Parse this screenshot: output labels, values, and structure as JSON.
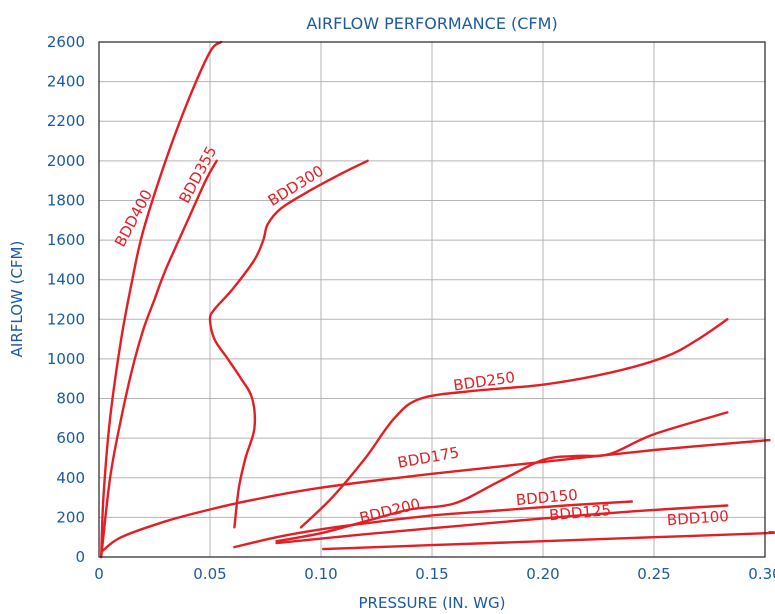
{
  "chart_data": {
    "type": "line",
    "title": "AIRFLOW PERFORMANCE (CFM)",
    "xlabel": "PRESSURE (IN. WG)",
    "ylabel": "AIRFLOW (CFM)",
    "xlim": [
      0,
      0.3
    ],
    "ylim": [
      0,
      2600
    ],
    "x_ticks": [
      "0",
      "0.05",
      "0.10",
      "0.15",
      "0.20",
      "0.25",
      "0.30"
    ],
    "y_ticks": [
      "0",
      "200",
      "400",
      "600",
      "800",
      "1000",
      "1200",
      "1400",
      "1600",
      "1800",
      "2000",
      "2200",
      "2400",
      "2600"
    ],
    "grid": true,
    "colors": {
      "curve": "#e31e24",
      "text": "#1a5aa6",
      "grid": "#b5b5b5"
    },
    "series": [
      {
        "name": "BDD400",
        "label_at": [
          0.011,
          1560,
          -62
        ],
        "points": [
          [
            0.001,
            0
          ],
          [
            0.002,
            300
          ],
          [
            0.005,
            700
          ],
          [
            0.01,
            1100
          ],
          [
            0.015,
            1400
          ],
          [
            0.02,
            1650
          ],
          [
            0.03,
            2000
          ],
          [
            0.04,
            2300
          ],
          [
            0.05,
            2550
          ],
          [
            0.055,
            2600
          ]
        ]
      },
      {
        "name": "BDD355",
        "label_at": [
          0.04,
          1780,
          -62
        ],
        "points": [
          [
            0.001,
            0
          ],
          [
            0.005,
            400
          ],
          [
            0.01,
            700
          ],
          [
            0.015,
            950
          ],
          [
            0.02,
            1150
          ],
          [
            0.025,
            1300
          ],
          [
            0.03,
            1450
          ],
          [
            0.04,
            1700
          ],
          [
            0.048,
            1900
          ],
          [
            0.053,
            2000
          ]
        ]
      },
      {
        "name": "BDD300",
        "label_at": [
          0.078,
          1770,
          -32
        ],
        "points": [
          [
            0.061,
            150
          ],
          [
            0.063,
            350
          ],
          [
            0.066,
            500
          ],
          [
            0.07,
            650
          ],
          [
            0.069,
            800
          ],
          [
            0.064,
            900
          ],
          [
            0.058,
            1000
          ],
          [
            0.052,
            1100
          ],
          [
            0.05,
            1200
          ],
          [
            0.052,
            1250
          ],
          [
            0.06,
            1350
          ],
          [
            0.07,
            1500
          ],
          [
            0.074,
            1600
          ],
          [
            0.076,
            1680
          ],
          [
            0.082,
            1760
          ],
          [
            0.095,
            1850
          ],
          [
            0.11,
            1940
          ],
          [
            0.121,
            2000
          ]
        ]
      },
      {
        "name": "BDD250",
        "label_at": [
          0.16,
          840,
          -8
        ],
        "points": [
          [
            0.091,
            150
          ],
          [
            0.105,
            300
          ],
          [
            0.12,
            500
          ],
          [
            0.133,
            700
          ],
          [
            0.145,
            800
          ],
          [
            0.17,
            840
          ],
          [
            0.2,
            870
          ],
          [
            0.23,
            930
          ],
          [
            0.255,
            1010
          ],
          [
            0.27,
            1100
          ],
          [
            0.283,
            1200
          ]
        ]
      },
      {
        "name": "BDD175",
        "label_at": [
          0.135,
          450,
          -10
        ],
        "points": [
          [
            0.0015,
            30
          ],
          [
            0.01,
            100
          ],
          [
            0.03,
            180
          ],
          [
            0.05,
            240
          ],
          [
            0.07,
            290
          ],
          [
            0.1,
            350
          ],
          [
            0.15,
            420
          ],
          [
            0.2,
            480
          ],
          [
            0.25,
            540
          ],
          [
            0.302,
            590
          ]
        ]
      },
      {
        "name": "BDD200",
        "label_at": [
          0.118,
          170,
          -14
        ],
        "points": [
          [
            0.08,
            80
          ],
          [
            0.1,
            120
          ],
          [
            0.12,
            180
          ],
          [
            0.14,
            240
          ],
          [
            0.16,
            270
          ],
          [
            0.18,
            380
          ],
          [
            0.2,
            490
          ],
          [
            0.215,
            510
          ],
          [
            0.23,
            520
          ],
          [
            0.25,
            620
          ],
          [
            0.283,
            730
          ]
        ]
      },
      {
        "name": "BDD150",
        "label_at": [
          0.188,
          262,
          -5
        ],
        "points": [
          [
            0.061,
            50
          ],
          [
            0.08,
            100
          ],
          [
            0.1,
            140
          ],
          [
            0.12,
            170
          ],
          [
            0.15,
            210
          ],
          [
            0.18,
            235
          ],
          [
            0.21,
            260
          ],
          [
            0.24,
            280
          ]
        ]
      },
      {
        "name": "BDD125",
        "label_at": [
          0.203,
          185,
          -5
        ],
        "points": [
          [
            0.08,
            70
          ],
          [
            0.12,
            115
          ],
          [
            0.16,
            155
          ],
          [
            0.2,
            195
          ],
          [
            0.24,
            230
          ],
          [
            0.283,
            260
          ]
        ]
      },
      {
        "name": "BDD100",
        "label_at": [
          0.256,
          160,
          -4
        ],
        "points": [
          [
            0.101,
            40
          ],
          [
            0.15,
            60
          ],
          [
            0.2,
            80
          ],
          [
            0.25,
            100
          ],
          [
            0.3,
            120
          ],
          [
            0.302,
            125
          ]
        ]
      }
    ]
  }
}
